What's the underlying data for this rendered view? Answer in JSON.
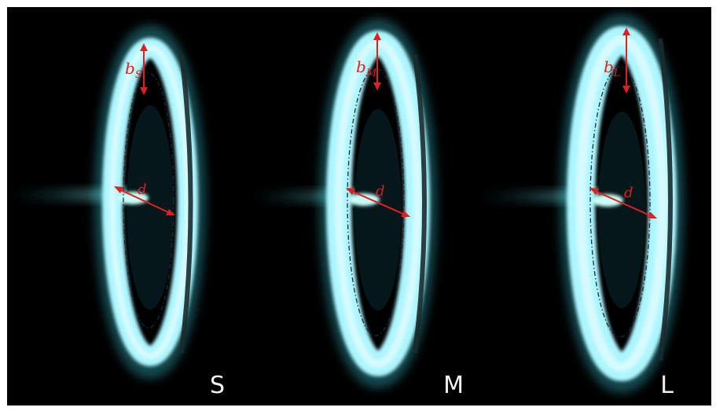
{
  "figure": {
    "panels": [
      {
        "label": "S",
        "b_symbol": "b",
        "b_subscript": "S",
        "d_symbol": "d"
      },
      {
        "label": "M",
        "b_symbol": "b",
        "b_subscript": "M",
        "d_symbol": "d"
      },
      {
        "label": "L",
        "b_symbol": "b",
        "b_subscript": "L",
        "d_symbol": "d"
      }
    ],
    "colors": {
      "background": "#000000",
      "glow": "#9ef3ff",
      "glow_core": "#e8fdff",
      "annotation": "#e02020"
    }
  }
}
